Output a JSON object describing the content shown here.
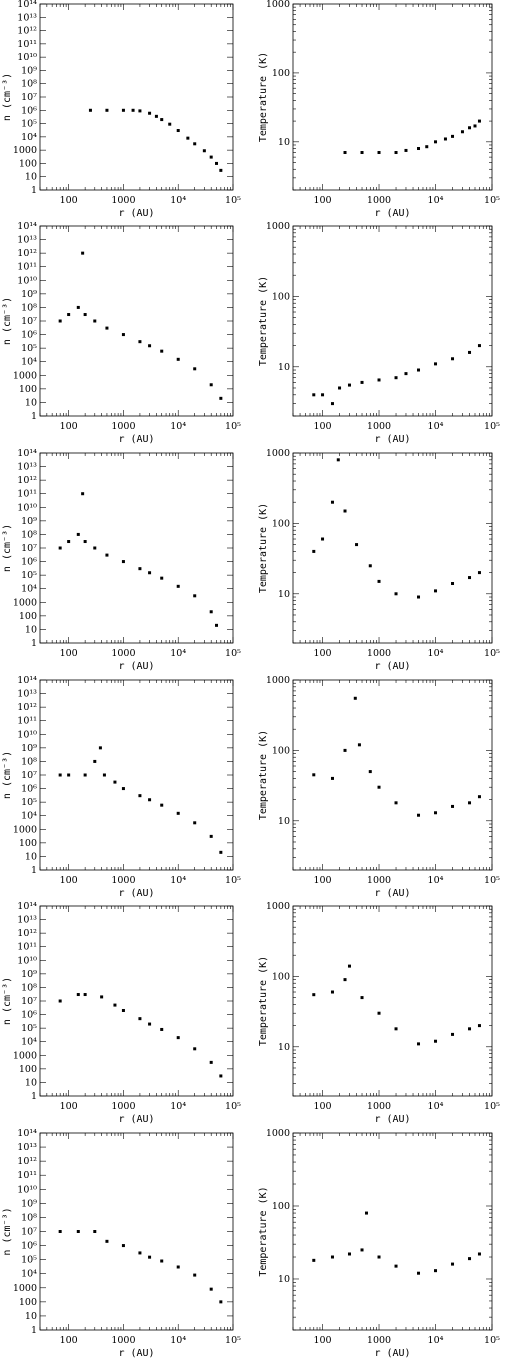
{
  "density_panel": {
    "xlabel": "r (AU)",
    "ylabel": "n (cm⁻³)",
    "xscale": "log",
    "yscale": "log",
    "xlim": [
      30,
      100000
    ],
    "ylim": [
      1,
      100000000000000
    ],
    "xtick_labels": [
      "100",
      "1000",
      "10⁴",
      "10⁵"
    ],
    "ytick_labels": [
      "1",
      "10",
      "100",
      "1000",
      "10⁴",
      "10⁵",
      "10⁶",
      "10⁷",
      "10⁸",
      "10⁹",
      "10¹⁰",
      "10¹¹",
      "10¹²",
      "10¹³",
      "10¹⁴"
    ]
  },
  "temperature_panel": {
    "xlabel": "r (AU)",
    "ylabel": "Temperature (K)",
    "xscale": "log",
    "yscale": "log",
    "xlim": [
      30,
      100000
    ],
    "ylim": [
      2,
      1000
    ],
    "xtick_labels": [
      "100",
      "1000",
      "10⁴",
      "10⁵"
    ],
    "ytick_labels": [
      "10",
      "100",
      "1000"
    ]
  },
  "chart_data": [
    {
      "type": "scatter",
      "panel": "density",
      "row": 1,
      "points": [
        [
          250,
          1000000
        ],
        [
          500,
          1000000
        ],
        [
          1000,
          1000000
        ],
        [
          1500,
          1000000
        ],
        [
          2000,
          900000
        ],
        [
          3000,
          600000
        ],
        [
          4000,
          350000
        ],
        [
          5000,
          200000
        ],
        [
          7000,
          90000
        ],
        [
          10000,
          30000
        ],
        [
          15000,
          8000
        ],
        [
          20000,
          3000
        ],
        [
          30000,
          900
        ],
        [
          40000,
          300
        ],
        [
          50000,
          100
        ],
        [
          60000,
          30
        ]
      ]
    },
    {
      "type": "scatter",
      "panel": "temperature",
      "row": 1,
      "points": [
        [
          250,
          7
        ],
        [
          500,
          7
        ],
        [
          1000,
          7
        ],
        [
          2000,
          7
        ],
        [
          3000,
          7.5
        ],
        [
          5000,
          8
        ],
        [
          7000,
          8.5
        ],
        [
          10000,
          10
        ],
        [
          15000,
          11
        ],
        [
          20000,
          12
        ],
        [
          30000,
          14
        ],
        [
          40000,
          16
        ],
        [
          50000,
          17
        ],
        [
          60000,
          20
        ]
      ]
    },
    {
      "type": "scatter",
      "panel": "density",
      "row": 2,
      "points": [
        [
          70,
          10000000
        ],
        [
          100,
          30000000
        ],
        [
          150,
          100000000
        ],
        [
          180,
          1000000000000
        ],
        [
          200,
          30000000
        ],
        [
          300,
          10000000
        ],
        [
          500,
          3000000
        ],
        [
          1000,
          1000000
        ],
        [
          2000,
          300000
        ],
        [
          3000,
          150000
        ],
        [
          5000,
          60000
        ],
        [
          10000,
          15000
        ],
        [
          20000,
          3000
        ],
        [
          40000,
          200
        ],
        [
          60000,
          20
        ]
      ]
    },
    {
      "type": "scatter",
      "panel": "temperature",
      "row": 2,
      "points": [
        [
          70,
          4
        ],
        [
          100,
          4
        ],
        [
          150,
          3
        ],
        [
          200,
          5
        ],
        [
          300,
          5.5
        ],
        [
          500,
          6
        ],
        [
          1000,
          6.5
        ],
        [
          2000,
          7
        ],
        [
          3000,
          8
        ],
        [
          5000,
          9
        ],
        [
          10000,
          11
        ],
        [
          20000,
          13
        ],
        [
          40000,
          16
        ],
        [
          60000,
          20
        ]
      ]
    },
    {
      "type": "scatter",
      "panel": "density",
      "row": 3,
      "points": [
        [
          70,
          10000000
        ],
        [
          100,
          30000000
        ],
        [
          150,
          100000000
        ],
        [
          180,
          100000000000
        ],
        [
          200,
          30000000
        ],
        [
          300,
          10000000
        ],
        [
          500,
          3000000
        ],
        [
          1000,
          1000000
        ],
        [
          2000,
          300000
        ],
        [
          3000,
          150000
        ],
        [
          5000,
          60000
        ],
        [
          10000,
          15000
        ],
        [
          20000,
          3000
        ],
        [
          40000,
          200
        ],
        [
          50000,
          20
        ]
      ]
    },
    {
      "type": "scatter",
      "panel": "temperature",
      "row": 3,
      "points": [
        [
          70,
          40
        ],
        [
          100,
          60
        ],
        [
          150,
          200
        ],
        [
          190,
          800
        ],
        [
          250,
          150
        ],
        [
          400,
          50
        ],
        [
          700,
          25
        ],
        [
          1000,
          15
        ],
        [
          2000,
          10
        ],
        [
          5000,
          9
        ],
        [
          10000,
          11
        ],
        [
          20000,
          14
        ],
        [
          40000,
          17
        ],
        [
          60000,
          20
        ]
      ]
    },
    {
      "type": "scatter",
      "panel": "density",
      "row": 4,
      "points": [
        [
          70,
          10000000
        ],
        [
          100,
          10000000
        ],
        [
          200,
          10000000
        ],
        [
          300,
          100000000
        ],
        [
          380,
          1000000000
        ],
        [
          450,
          10000000
        ],
        [
          700,
          3000000
        ],
        [
          1000,
          1000000
        ],
        [
          2000,
          300000
        ],
        [
          3000,
          150000
        ],
        [
          5000,
          60000
        ],
        [
          10000,
          15000
        ],
        [
          20000,
          3000
        ],
        [
          40000,
          300
        ],
        [
          60000,
          20
        ]
      ]
    },
    {
      "type": "scatter",
      "panel": "temperature",
      "row": 4,
      "points": [
        [
          70,
          45
        ],
        [
          150,
          40
        ],
        [
          250,
          100
        ],
        [
          380,
          550
        ],
        [
          450,
          120
        ],
        [
          700,
          50
        ],
        [
          1000,
          30
        ],
        [
          2000,
          18
        ],
        [
          5000,
          12
        ],
        [
          10000,
          13
        ],
        [
          20000,
          16
        ],
        [
          40000,
          18
        ],
        [
          60000,
          22
        ]
      ]
    },
    {
      "type": "scatter",
      "panel": "density",
      "row": 5,
      "points": [
        [
          70,
          10000000
        ],
        [
          150,
          30000000
        ],
        [
          200,
          30000000
        ],
        [
          400,
          20000000
        ],
        [
          700,
          5000000
        ],
        [
          1000,
          2000000
        ],
        [
          2000,
          500000
        ],
        [
          3000,
          200000
        ],
        [
          5000,
          80000
        ],
        [
          10000,
          20000
        ],
        [
          20000,
          3000
        ],
        [
          40000,
          300
        ],
        [
          60000,
          30
        ]
      ]
    },
    {
      "type": "scatter",
      "panel": "temperature",
      "row": 5,
      "points": [
        [
          70,
          55
        ],
        [
          150,
          60
        ],
        [
          250,
          90
        ],
        [
          300,
          140
        ],
        [
          500,
          50
        ],
        [
          1000,
          30
        ],
        [
          2000,
          18
        ],
        [
          5000,
          11
        ],
        [
          10000,
          12
        ],
        [
          20000,
          15
        ],
        [
          40000,
          18
        ],
        [
          60000,
          20
        ]
      ]
    },
    {
      "type": "scatter",
      "panel": "density",
      "row": 6,
      "points": [
        [
          70,
          10000000
        ],
        [
          150,
          10000000
        ],
        [
          300,
          10000000
        ],
        [
          500,
          2000000
        ],
        [
          1000,
          1000000
        ],
        [
          2000,
          300000
        ],
        [
          3000,
          150000
        ],
        [
          5000,
          80000
        ],
        [
          10000,
          30000
        ],
        [
          20000,
          8000
        ],
        [
          40000,
          800
        ],
        [
          60000,
          100
        ]
      ]
    },
    {
      "type": "scatter",
      "panel": "temperature",
      "row": 6,
      "points": [
        [
          70,
          18
        ],
        [
          150,
          20
        ],
        [
          300,
          22
        ],
        [
          500,
          25
        ],
        [
          600,
          80
        ],
        [
          1000,
          20
        ],
        [
          2000,
          15
        ],
        [
          5000,
          12
        ],
        [
          10000,
          13
        ],
        [
          20000,
          16
        ],
        [
          40000,
          19
        ],
        [
          60000,
          22
        ]
      ]
    }
  ]
}
